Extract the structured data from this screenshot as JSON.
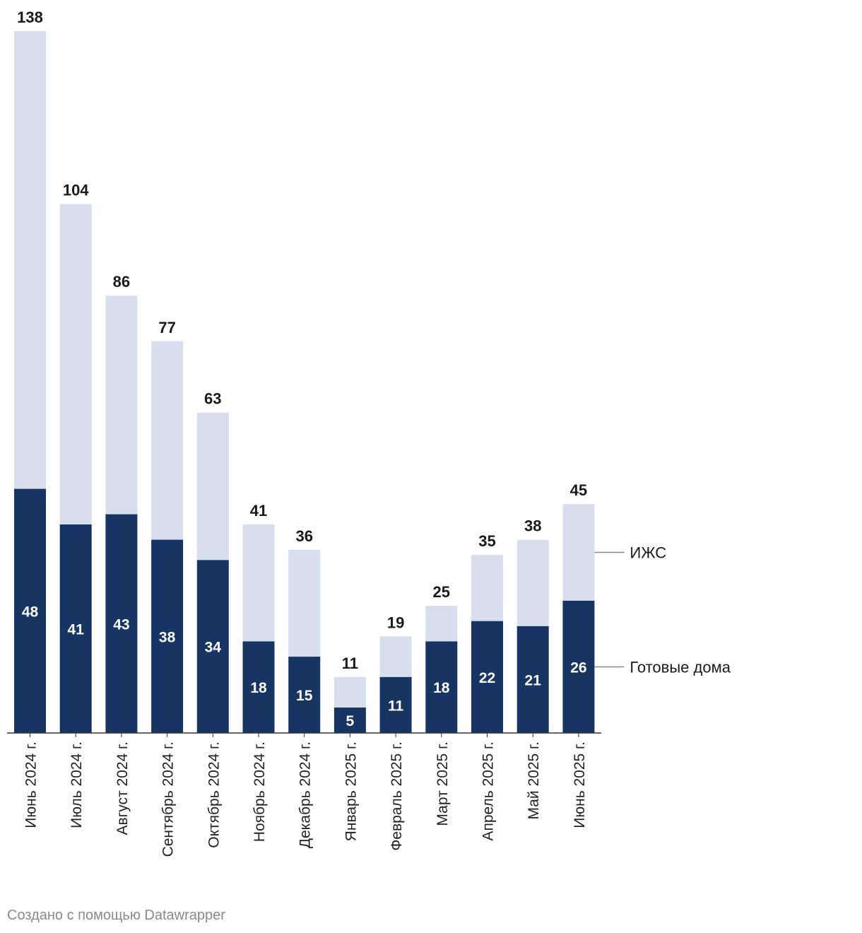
{
  "chart_data": {
    "type": "bar",
    "stacked": true,
    "categories": [
      "Июнь 2024 г.",
      "Июль 2024 г.",
      "Август 2024 г.",
      "Сентябрь 2024 г.",
      "Октябрь 2024 г.",
      "Ноябрь 2024 г.",
      "Декабрь 2024 г.",
      "Январь 2025 г.",
      "Февраль 2025 г.",
      "Март 2025 г.",
      "Апрель 2025 г.",
      "Май 2025 г.",
      "Июнь 2025 г."
    ],
    "series": [
      {
        "name": "Готовые дома",
        "color": "#173563",
        "values": [
          48,
          41,
          43,
          38,
          34,
          18,
          15,
          5,
          11,
          18,
          22,
          21,
          26
        ]
      },
      {
        "name": "ИЖС",
        "color": "#d7dfef",
        "values": [
          90,
          63,
          43,
          39,
          29,
          23,
          21,
          6,
          8,
          7,
          13,
          17,
          19
        ]
      }
    ],
    "totals": [
      138,
      104,
      86,
      77,
      63,
      41,
      36,
      11,
      19,
      25,
      35,
      38,
      45
    ],
    "ylim": [
      0,
      138
    ],
    "grid": false,
    "legend": "right, inline labels"
  },
  "footer": {
    "credit": "Создано с помощью Datawrapper"
  }
}
